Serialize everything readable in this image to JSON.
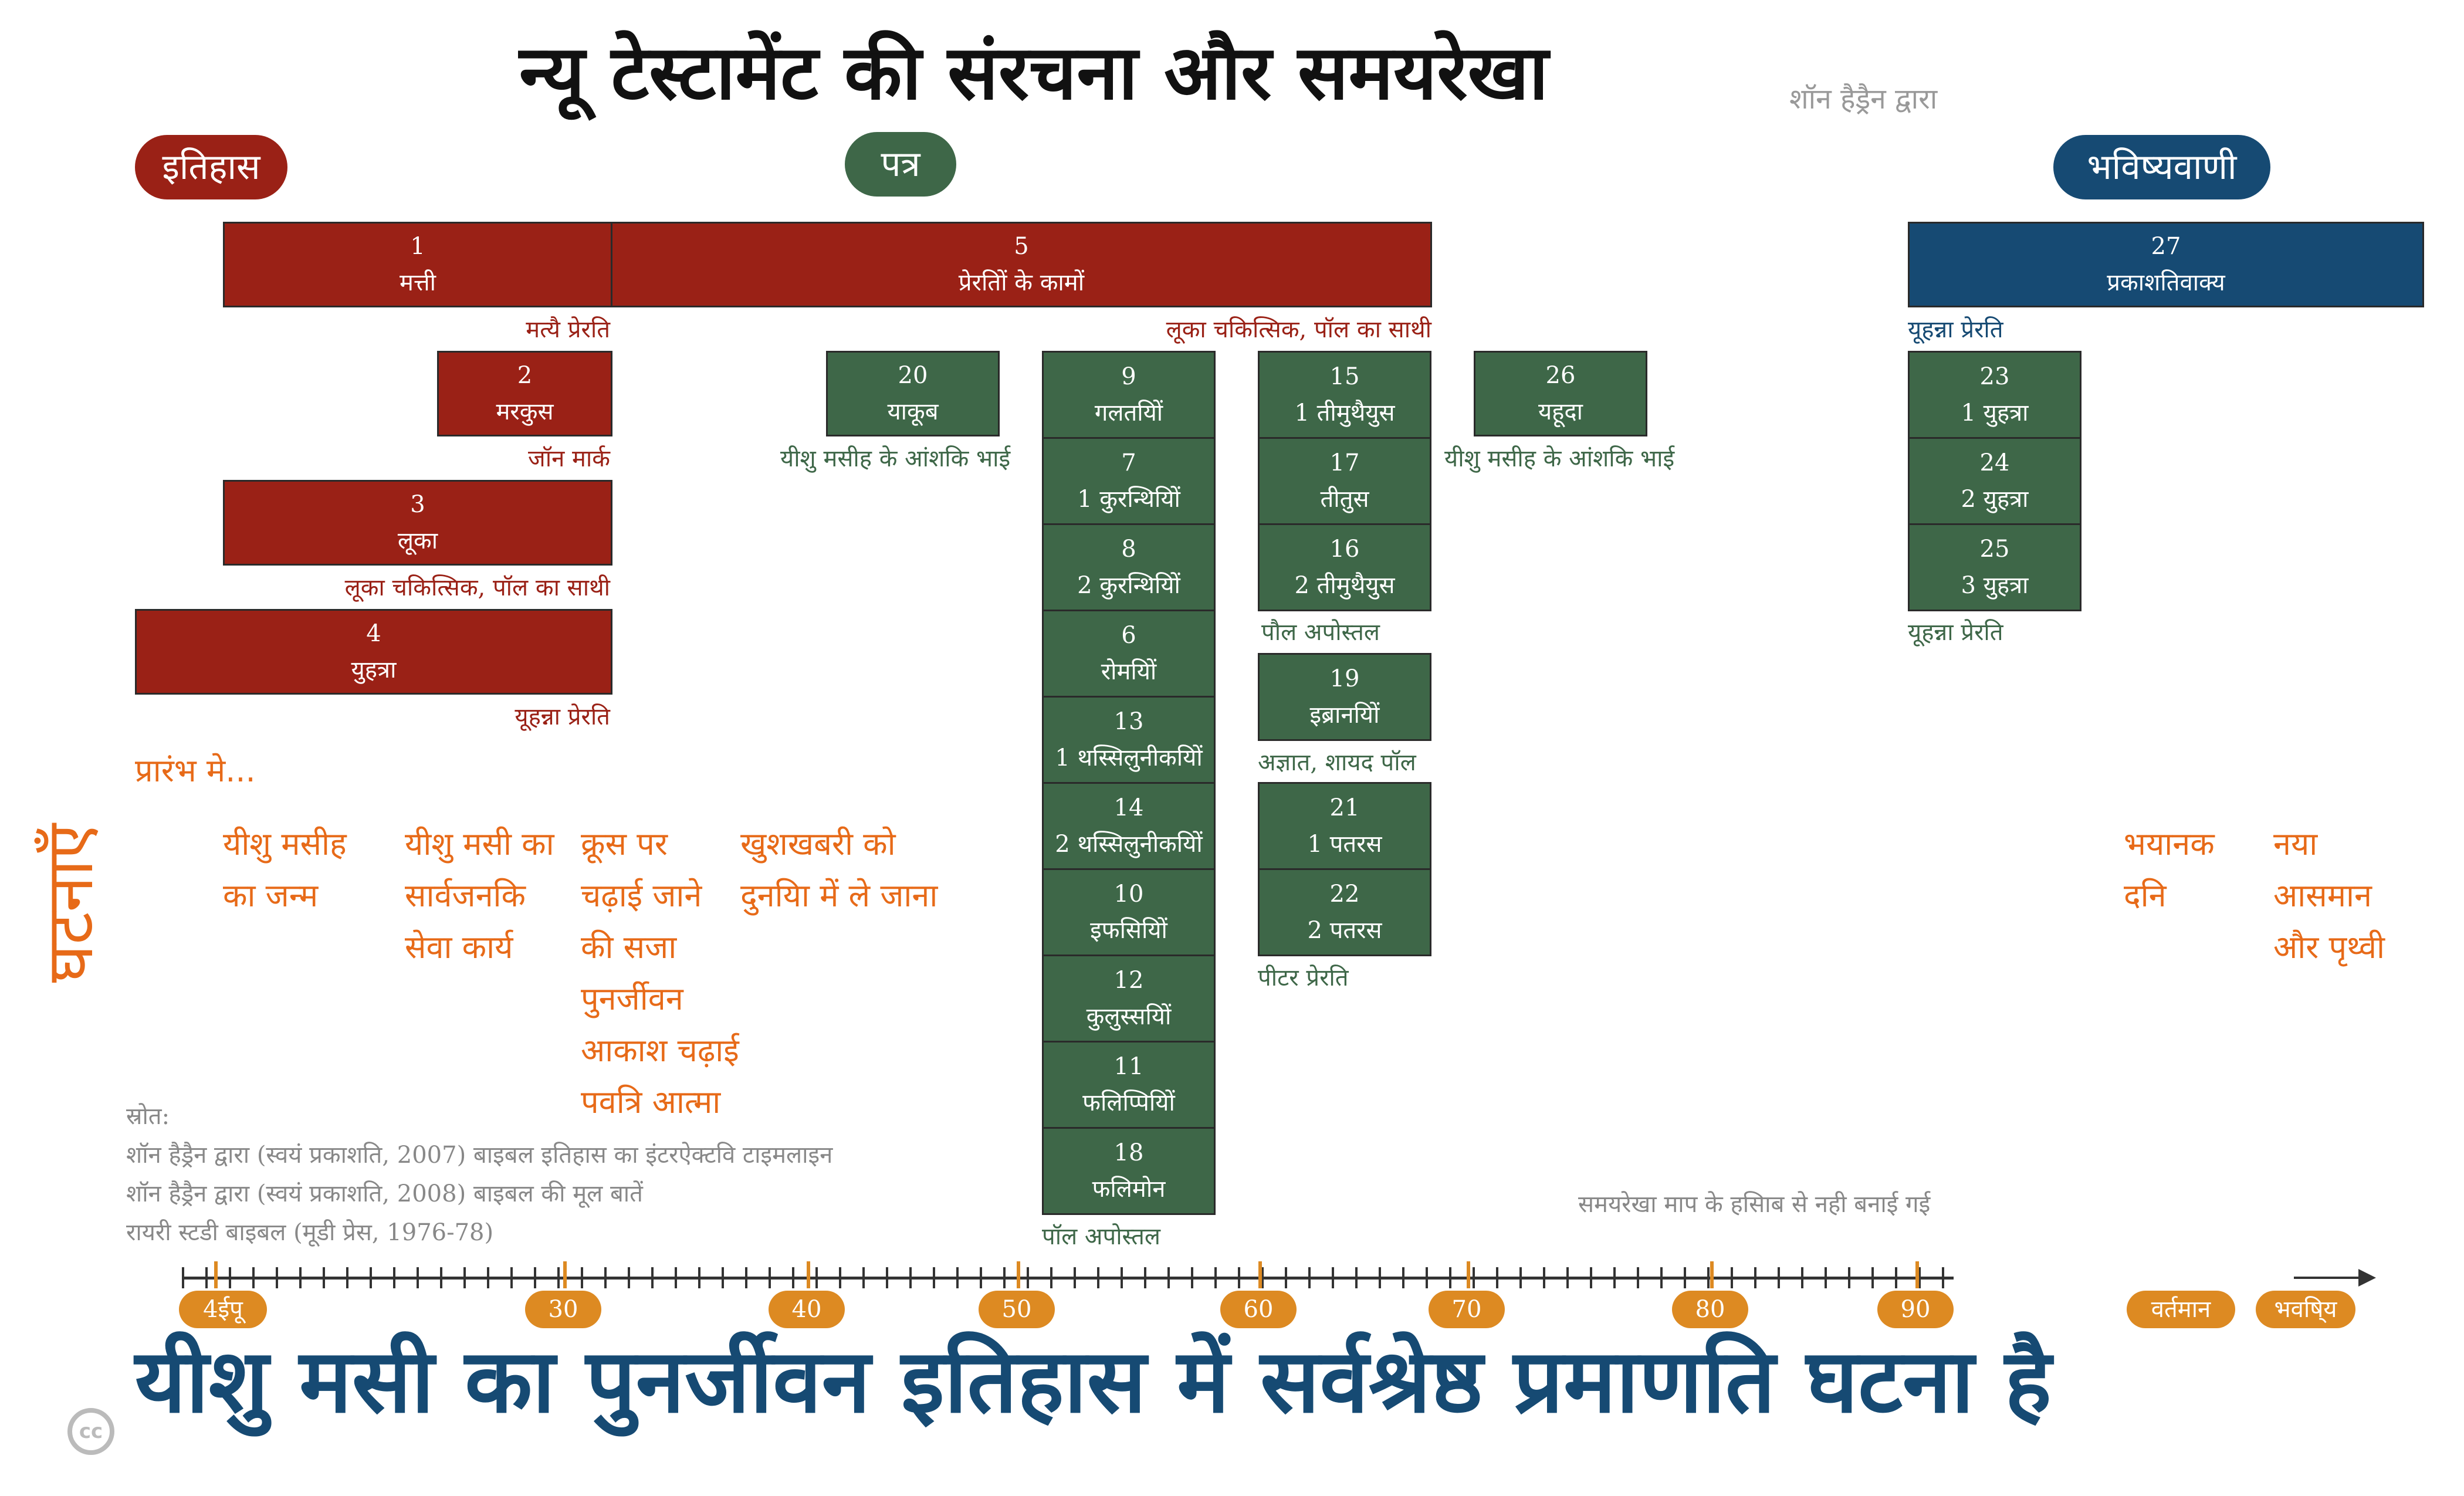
{
  "title": "न्यू टेस्टामेंट की संरचना और समयरेखा",
  "byline": "शॉन हैड्रैन द्वारा",
  "categories": {
    "history": "इतिहास",
    "letters": "पत्र",
    "prophecy": "भविष्यवाणी"
  },
  "books": {
    "b1": {
      "num": "1",
      "name": "मत्ती"
    },
    "b5": {
      "num": "5",
      "name": "प्रेरतिों के कामों"
    },
    "b27": {
      "num": "27",
      "name": "प्रकाशतिवाक्य"
    },
    "b2": {
      "num": "2",
      "name": "मरकुस"
    },
    "b3": {
      "num": "3",
      "name": "लूका"
    },
    "b4": {
      "num": "4",
      "name": "युहत्रा"
    },
    "b20": {
      "num": "20",
      "name": "याकूब"
    },
    "b9": {
      "num": "9",
      "name": "गलतयिों"
    },
    "b7": {
      "num": "7",
      "name": "1 कुरन्थियिों"
    },
    "b8": {
      "num": "8",
      "name": "2 कुरन्थियिों"
    },
    "b6": {
      "num": "6",
      "name": "रोमयिों"
    },
    "b13": {
      "num": "13",
      "name": "1 थस्सिलुनीकयिों"
    },
    "b14": {
      "num": "14",
      "name": "2 थस्सिलुनीकयिों"
    },
    "b10": {
      "num": "10",
      "name": "इफसियिों"
    },
    "b12": {
      "num": "12",
      "name": "कुलुस्सयिों"
    },
    "b11": {
      "num": "11",
      "name": "फलिप्पियिों"
    },
    "b18": {
      "num": "18",
      "name": "फलिमोन"
    },
    "b15": {
      "num": "15",
      "name": "1 तीमुथैयुस"
    },
    "b17": {
      "num": "17",
      "name": "तीतुस"
    },
    "b16": {
      "num": "16",
      "name": "2 तीमुथैयुस"
    },
    "b19": {
      "num": "19",
      "name": "इब्रानयिों"
    },
    "b21": {
      "num": "21",
      "name": "1 पतरस"
    },
    "b22": {
      "num": "22",
      "name": "2 पतरस"
    },
    "b26": {
      "num": "26",
      "name": "यहूदा"
    },
    "b23": {
      "num": "23",
      "name": "1 युहत्रा"
    },
    "b24": {
      "num": "24",
      "name": "2 युहत्रा"
    },
    "b25": {
      "num": "25",
      "name": "3 युहत्रा"
    }
  },
  "authors": {
    "matthew": "मत्यै प्रेरति",
    "luke_acts": "लूका चकित्सिक, पॉल का साथी",
    "john_rev": "यूहन्ना प्रेरति",
    "mark": "जॉन मार्क",
    "luke": "लूका चकित्सिक, पॉल का साथी",
    "john": "यूहन्ना प्रेरति",
    "james": "यीशु मसीह के आंशकि भाई",
    "jude": "यीशु मसीह के आंशकि भाई",
    "paul_pastoral": "पौल अपोस्तल",
    "hebrews": "अज्ञात, शायद पॉल",
    "peter": "पीटर प्रेरति",
    "paul": "पॉल अपोस्तल",
    "john_letters": "यूहन्ना प्रेरति"
  },
  "events": {
    "intro": "प्रारंभ मे...",
    "side_label": "घटनाएँ",
    "e1": "यीशु मसीह\nका जन्म",
    "e2": "यीशु मसी का\nसार्वजनकि\nसेवा कार्य",
    "e3": "क्रूस पर\nचढ़ाई जाने\nकी सजा\nपुनर्जीवन\nआकाश चढ़ाई\nपवत्रि आत्मा",
    "e4": "खुशखबरी को\nदुनयिा में ले जाना",
    "e5": "भयानक\nदनि",
    "e6": "नया\nआसमान\nऔर पृथ्वी"
  },
  "sources": {
    "label": "स्रोत:",
    "s1": "शॉन हैड्रैन द्वारा (स्वयं प्रकाशति, 2007) बाइबल इतिहास का इंटरऐक्टवि टाइमलाइन",
    "s2": "शॉन हैड्रैन द्वारा (स्वयं प्रकाशति, 2008) बाइबल की मूल बातें",
    "s3": "रायरी स्टडी बाइबल (मूडी प्रेस, 1976-78)"
  },
  "scale_note": "समयरेखा माप के हसािब से नही बनाई गई",
  "timeline": {
    "labels": [
      "4ईपू",
      "30",
      "40",
      "50",
      "60",
      "70",
      "80",
      "90"
    ],
    "present": "वर्तमान",
    "future": "भवषि्य"
  },
  "footer": "यीशु मसी का पुनर्जीवन इतिहास में सर्वश्रेष्ठ प्रमाणति घटना है",
  "cc_label": "cc",
  "colors": {
    "history": "#9a2116",
    "letters": "#3e6748",
    "prophecy": "#164a73",
    "events": "#e76a18",
    "timeline": "#dd8a22"
  }
}
